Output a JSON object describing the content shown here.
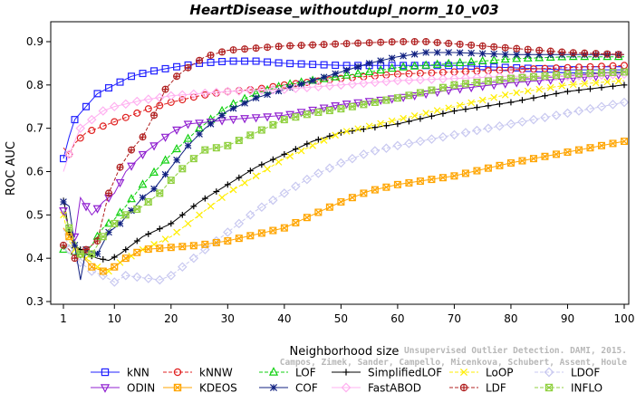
{
  "chart_data": {
    "type": "line",
    "title": "HeartDisease_withoutdupl_norm_10_v03",
    "xlabel": "Neighborhood size",
    "ylabel": "ROC AUC",
    "xlim": [
      1,
      100
    ],
    "ylim": [
      0.3,
      0.92
    ],
    "x_ticks": [
      1,
      10,
      20,
      30,
      40,
      50,
      60,
      70,
      80,
      90,
      100
    ],
    "y_ticks": [
      0.3,
      0.4,
      0.5,
      0.6,
      0.7,
      0.8,
      0.9
    ],
    "grid": false,
    "legend_position": "bottom",
    "series": [
      {
        "name": "kNN",
        "color": "#2020ff",
        "marker": "square",
        "dash": "",
        "points": [
          [
            1,
            0.63
          ],
          [
            2,
            0.68
          ],
          [
            3,
            0.72
          ],
          [
            5,
            0.75
          ],
          [
            7,
            0.78
          ],
          [
            10,
            0.8
          ],
          [
            13,
            0.82
          ],
          [
            16,
            0.83
          ],
          [
            20,
            0.84
          ],
          [
            25,
            0.85
          ],
          [
            30,
            0.855
          ],
          [
            35,
            0.855
          ],
          [
            40,
            0.85
          ],
          [
            50,
            0.845
          ],
          [
            60,
            0.845
          ],
          [
            70,
            0.845
          ],
          [
            80,
            0.84
          ],
          [
            90,
            0.835
          ],
          [
            100,
            0.835
          ]
        ]
      },
      {
        "name": "kNNW",
        "color": "#e02020",
        "marker": "circle",
        "dash": "4,2",
        "points": [
          [
            1,
            0.655
          ],
          [
            2,
            0.64
          ],
          [
            3,
            0.665
          ],
          [
            5,
            0.69
          ],
          [
            7,
            0.7
          ],
          [
            10,
            0.715
          ],
          [
            13,
            0.73
          ],
          [
            16,
            0.745
          ],
          [
            20,
            0.76
          ],
          [
            25,
            0.775
          ],
          [
            30,
            0.785
          ],
          [
            35,
            0.79
          ],
          [
            40,
            0.8
          ],
          [
            50,
            0.815
          ],
          [
            60,
            0.825
          ],
          [
            70,
            0.83
          ],
          [
            80,
            0.835
          ],
          [
            90,
            0.84
          ],
          [
            100,
            0.845
          ]
        ]
      },
      {
        "name": "LOF",
        "color": "#10d010",
        "marker": "triangle-up",
        "dash": "4,2",
        "points": [
          [
            1,
            0.42
          ],
          [
            2,
            0.43
          ],
          [
            4,
            0.4
          ],
          [
            6,
            0.43
          ],
          [
            8,
            0.47
          ],
          [
            10,
            0.49
          ],
          [
            12,
            0.52
          ],
          [
            15,
            0.57
          ],
          [
            20,
            0.64
          ],
          [
            25,
            0.7
          ],
          [
            30,
            0.75
          ],
          [
            35,
            0.78
          ],
          [
            40,
            0.8
          ],
          [
            50,
            0.82
          ],
          [
            60,
            0.84
          ],
          [
            70,
            0.85
          ],
          [
            80,
            0.86
          ],
          [
            90,
            0.865
          ],
          [
            100,
            0.865
          ]
        ]
      },
      {
        "name": "SimplifiedLOF",
        "color": "#000000",
        "marker": "plus",
        "dash": "",
        "points": [
          [
            1,
            0.54
          ],
          [
            2,
            0.46
          ],
          [
            3,
            0.43
          ],
          [
            5,
            0.41
          ],
          [
            7,
            0.4
          ],
          [
            9,
            0.395
          ],
          [
            11,
            0.41
          ],
          [
            15,
            0.45
          ],
          [
            20,
            0.48
          ],
          [
            25,
            0.53
          ],
          [
            30,
            0.57
          ],
          [
            35,
            0.61
          ],
          [
            40,
            0.64
          ],
          [
            45,
            0.67
          ],
          [
            50,
            0.69
          ],
          [
            60,
            0.71
          ],
          [
            70,
            0.74
          ],
          [
            80,
            0.76
          ],
          [
            90,
            0.785
          ],
          [
            100,
            0.8
          ]
        ]
      },
      {
        "name": "LoOP",
        "color": "#ffee00",
        "marker": "x",
        "dash": "4,2",
        "points": [
          [
            1,
            0.5
          ],
          [
            2,
            0.44
          ],
          [
            3,
            0.42
          ],
          [
            5,
            0.4
          ],
          [
            7,
            0.38
          ],
          [
            9,
            0.37
          ],
          [
            11,
            0.39
          ],
          [
            15,
            0.42
          ],
          [
            20,
            0.45
          ],
          [
            25,
            0.5
          ],
          [
            30,
            0.55
          ],
          [
            35,
            0.59
          ],
          [
            40,
            0.63
          ],
          [
            45,
            0.66
          ],
          [
            50,
            0.69
          ],
          [
            60,
            0.72
          ],
          [
            70,
            0.75
          ],
          [
            80,
            0.78
          ],
          [
            90,
            0.8
          ],
          [
            100,
            0.81
          ]
        ]
      },
      {
        "name": "LDOF",
        "color": "#c8c8f0",
        "marker": "diamond",
        "dash": "4,2",
        "points": [
          [
            1,
            0.47
          ],
          [
            2,
            0.42
          ],
          [
            4,
            0.39
          ],
          [
            6,
            0.37
          ],
          [
            8,
            0.36
          ],
          [
            10,
            0.345
          ],
          [
            12,
            0.36
          ],
          [
            15,
            0.355
          ],
          [
            18,
            0.35
          ],
          [
            20,
            0.36
          ],
          [
            25,
            0.41
          ],
          [
            30,
            0.46
          ],
          [
            35,
            0.51
          ],
          [
            40,
            0.55
          ],
          [
            45,
            0.59
          ],
          [
            50,
            0.62
          ],
          [
            55,
            0.645
          ],
          [
            60,
            0.66
          ],
          [
            70,
            0.685
          ],
          [
            80,
            0.71
          ],
          [
            90,
            0.735
          ],
          [
            100,
            0.76
          ]
        ]
      },
      {
        "name": "ODIN",
        "color": "#9020d0",
        "marker": "triangle-down",
        "dash": "",
        "points": [
          [
            1,
            0.51
          ],
          [
            2,
            0.47
          ],
          [
            3,
            0.45
          ],
          [
            4,
            0.54
          ],
          [
            6,
            0.5
          ],
          [
            8,
            0.53
          ],
          [
            10,
            0.55
          ],
          [
            12,
            0.6
          ],
          [
            15,
            0.64
          ],
          [
            18,
            0.67
          ],
          [
            20,
            0.69
          ],
          [
            23,
            0.71
          ],
          [
            27,
            0.715
          ],
          [
            30,
            0.72
          ],
          [
            35,
            0.725
          ],
          [
            40,
            0.73
          ],
          [
            50,
            0.755
          ],
          [
            60,
            0.77
          ],
          [
            70,
            0.79
          ],
          [
            80,
            0.805
          ],
          [
            90,
            0.815
          ],
          [
            100,
            0.825
          ]
        ]
      },
      {
        "name": "KDEOS",
        "color": "#ffa500",
        "marker": "square-x",
        "dash": "",
        "points": [
          [
            1,
            0.47
          ],
          [
            2,
            0.45
          ],
          [
            4,
            0.41
          ],
          [
            6,
            0.38
          ],
          [
            8,
            0.37
          ],
          [
            10,
            0.38
          ],
          [
            12,
            0.4
          ],
          [
            15,
            0.42
          ],
          [
            20,
            0.425
          ],
          [
            25,
            0.43
          ],
          [
            30,
            0.44
          ],
          [
            35,
            0.455
          ],
          [
            40,
            0.47
          ],
          [
            45,
            0.5
          ],
          [
            50,
            0.53
          ],
          [
            55,
            0.555
          ],
          [
            60,
            0.57
          ],
          [
            70,
            0.59
          ],
          [
            80,
            0.62
          ],
          [
            90,
            0.645
          ],
          [
            100,
            0.67
          ]
        ]
      },
      {
        "name": "COF",
        "color": "#102080",
        "marker": "asterisk",
        "dash": "",
        "points": [
          [
            1,
            0.53
          ],
          [
            2,
            0.52
          ],
          [
            3,
            0.43
          ],
          [
            4,
            0.35
          ],
          [
            5,
            0.42
          ],
          [
            7,
            0.41
          ],
          [
            9,
            0.46
          ],
          [
            11,
            0.48
          ],
          [
            13,
            0.51
          ],
          [
            15,
            0.54
          ],
          [
            17,
            0.56
          ],
          [
            20,
            0.61
          ],
          [
            23,
            0.66
          ],
          [
            26,
            0.7
          ],
          [
            30,
            0.74
          ],
          [
            35,
            0.77
          ],
          [
            40,
            0.79
          ],
          [
            45,
            0.81
          ],
          [
            50,
            0.83
          ],
          [
            55,
            0.85
          ],
          [
            60,
            0.865
          ],
          [
            65,
            0.875
          ],
          [
            70,
            0.875
          ],
          [
            80,
            0.87
          ],
          [
            90,
            0.87
          ],
          [
            100,
            0.87
          ]
        ]
      },
      {
        "name": "FastABOD",
        "color": "#ffb0f0",
        "marker": "diamond",
        "dash": "",
        "points": [
          [
            1,
            0.6
          ],
          [
            2,
            0.64
          ],
          [
            3,
            0.67
          ],
          [
            4,
            0.7
          ],
          [
            6,
            0.72
          ],
          [
            8,
            0.74
          ],
          [
            10,
            0.75
          ],
          [
            15,
            0.765
          ],
          [
            20,
            0.775
          ],
          [
            25,
            0.78
          ],
          [
            30,
            0.785
          ],
          [
            40,
            0.79
          ],
          [
            50,
            0.8
          ],
          [
            60,
            0.81
          ],
          [
            70,
            0.815
          ],
          [
            80,
            0.82
          ],
          [
            90,
            0.82
          ],
          [
            100,
            0.825
          ]
        ]
      },
      {
        "name": "LDF",
        "color": "#b02020",
        "marker": "circle-plus",
        "dash": "4,2",
        "points": [
          [
            1,
            0.43
          ],
          [
            2,
            0.42
          ],
          [
            3,
            0.4
          ],
          [
            5,
            0.42
          ],
          [
            7,
            0.44
          ],
          [
            9,
            0.55
          ],
          [
            11,
            0.61
          ],
          [
            13,
            0.65
          ],
          [
            15,
            0.68
          ],
          [
            17,
            0.73
          ],
          [
            19,
            0.79
          ],
          [
            21,
            0.82
          ],
          [
            23,
            0.84
          ],
          [
            26,
            0.865
          ],
          [
            30,
            0.88
          ],
          [
            40,
            0.89
          ],
          [
            50,
            0.895
          ],
          [
            60,
            0.9
          ],
          [
            65,
            0.9
          ],
          [
            70,
            0.895
          ],
          [
            80,
            0.885
          ],
          [
            90,
            0.875
          ],
          [
            100,
            0.87
          ]
        ]
      },
      {
        "name": "INFLO",
        "color": "#90d040",
        "marker": "hash",
        "dash": "4,2",
        "points": [
          [
            1,
            0.51
          ],
          [
            2,
            0.47
          ],
          [
            4,
            0.41
          ],
          [
            6,
            0.41
          ],
          [
            8,
            0.45
          ],
          [
            10,
            0.48
          ],
          [
            12,
            0.5
          ],
          [
            15,
            0.52
          ],
          [
            18,
            0.55
          ],
          [
            20,
            0.58
          ],
          [
            23,
            0.62
          ],
          [
            26,
            0.65
          ],
          [
            30,
            0.66
          ],
          [
            35,
            0.69
          ],
          [
            40,
            0.72
          ],
          [
            45,
            0.735
          ],
          [
            50,
            0.745
          ],
          [
            60,
            0.77
          ],
          [
            70,
            0.8
          ],
          [
            80,
            0.815
          ],
          [
            90,
            0.825
          ],
          [
            100,
            0.83
          ]
        ]
      }
    ]
  },
  "credit": {
    "line1": "Unsupervised Outlier Detection. DAMI, 2015.",
    "line2": "Campos, Zimek, Sander, Campello, Micenkova, Schubert, Assent, Houle"
  }
}
